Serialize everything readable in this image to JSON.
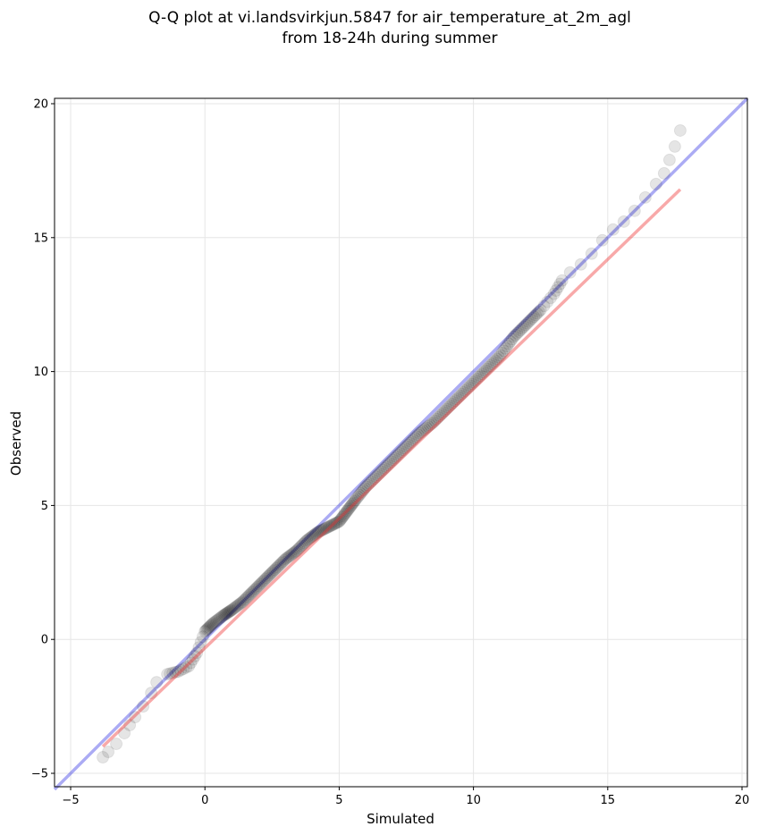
{
  "chart_data": {
    "type": "scatter",
    "title_line1": "Q-Q plot at vi.landsvirkjun.5847 for air_temperature_at_2m_agl",
    "title_line2": "from 18-24h during summer",
    "xlabel": "Simulated",
    "ylabel": "Observed",
    "xlim": [
      -5.6,
      20.2
    ],
    "ylim": [
      -5.5,
      20.2
    ],
    "xticks": [
      -5,
      0,
      5,
      10,
      15,
      20
    ],
    "yticks": [
      -5,
      0,
      5,
      10,
      15,
      20
    ],
    "grid": true,
    "lines": [
      {
        "role": "identity",
        "color": "#0000dd",
        "x": [
          -5.6,
          20.2
        ],
        "y": [
          -5.6,
          20.2
        ]
      },
      {
        "role": "fit",
        "color": "#ee3333",
        "x": [
          -3.8,
          17.7
        ],
        "y": [
          -4.0,
          16.8
        ]
      }
    ],
    "quantile_points": {
      "x": [
        -3.8,
        -3.6,
        -3.3,
        -3.0,
        -2.8,
        -2.6,
        -2.3,
        -2.0,
        -1.8,
        -1.4,
        -1.0,
        -0.6,
        -0.3,
        0.0,
        0.3,
        0.7,
        1.0,
        1.4,
        1.8,
        2.2,
        2.6,
        3.0,
        3.4,
        3.8,
        4.2,
        4.6,
        5.0,
        5.3,
        5.6,
        6.0,
        6.5,
        7.0,
        7.5,
        8.0,
        8.5,
        9.0,
        9.5,
        10.0,
        10.5,
        11.0,
        11.5,
        12.0,
        12.5,
        13.0,
        13.3,
        13.6,
        14.0,
        14.4,
        14.8,
        15.2,
        15.6,
        16.0,
        16.4,
        16.8,
        17.1,
        17.3,
        17.5,
        17.7
      ],
      "y": [
        -4.4,
        -4.2,
        -3.9,
        -3.5,
        -3.2,
        -2.9,
        -2.5,
        -2.0,
        -1.6,
        -1.3,
        -1.2,
        -1.0,
        -0.5,
        0.3,
        0.6,
        0.9,
        1.1,
        1.4,
        1.8,
        2.2,
        2.6,
        3.0,
        3.3,
        3.7,
        4.0,
        4.2,
        4.4,
        4.8,
        5.2,
        5.7,
        6.2,
        6.7,
        7.2,
        7.7,
        8.1,
        8.6,
        9.1,
        9.6,
        10.1,
        10.6,
        11.3,
        11.8,
        12.3,
        12.9,
        13.4,
        13.7,
        14.0,
        14.4,
        14.9,
        15.3,
        15.6,
        16.0,
        16.5,
        17.0,
        17.4,
        17.9,
        18.4,
        19.0
      ]
    }
  }
}
